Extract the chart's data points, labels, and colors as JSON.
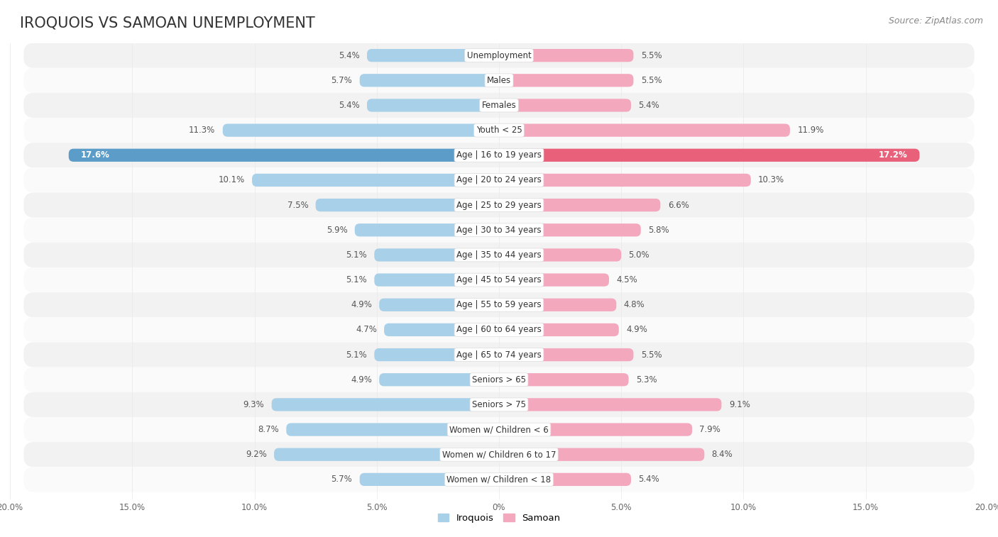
{
  "title": "Iroquois vs Samoan Unemployment",
  "source": "Source: ZipAtlas.com",
  "categories": [
    "Unemployment",
    "Males",
    "Females",
    "Youth < 25",
    "Age | 16 to 19 years",
    "Age | 20 to 24 years",
    "Age | 25 to 29 years",
    "Age | 30 to 34 years",
    "Age | 35 to 44 years",
    "Age | 45 to 54 years",
    "Age | 55 to 59 years",
    "Age | 60 to 64 years",
    "Age | 65 to 74 years",
    "Seniors > 65",
    "Seniors > 75",
    "Women w/ Children < 6",
    "Women w/ Children 6 to 17",
    "Women w/ Children < 18"
  ],
  "iroquois": [
    5.4,
    5.7,
    5.4,
    11.3,
    17.6,
    10.1,
    7.5,
    5.9,
    5.1,
    5.1,
    4.9,
    4.7,
    5.1,
    4.9,
    9.3,
    8.7,
    9.2,
    5.7
  ],
  "samoan": [
    5.5,
    5.5,
    5.4,
    11.9,
    17.2,
    10.3,
    6.6,
    5.8,
    5.0,
    4.5,
    4.8,
    4.9,
    5.5,
    5.3,
    9.1,
    7.9,
    8.4,
    5.4
  ],
  "iroquois_color": "#a8d0e8",
  "samoan_color": "#f4a8be",
  "iroquois_highlight": "#5b9dc8",
  "samoan_highlight": "#e8607a",
  "bg_color": "#ffffff",
  "row_bg_odd": "#f2f2f2",
  "row_bg_even": "#fafafa",
  "max_val": 20.0,
  "legend_iroquois": "Iroquois",
  "legend_samoan": "Samoan",
  "highlight_row": 4,
  "title_fontsize": 15,
  "label_fontsize": 8.5,
  "val_fontsize": 8.5,
  "source_fontsize": 9
}
